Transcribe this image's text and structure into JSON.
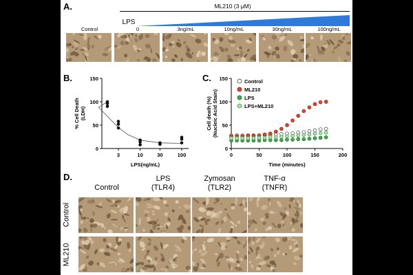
{
  "panelA": {
    "letter": "A.",
    "drug_label": "ML210 (3 μM)",
    "lps_label": "LPS",
    "columns": [
      "Control",
      "0",
      "3ng/mL",
      "10ng/mL",
      "30ng/mL",
      "100ng/mL"
    ]
  },
  "panelB": {
    "letter": "B.",
    "chart_data": {
      "type": "scatter",
      "title": "",
      "xlabel": "LPS(ng/mL)",
      "ylabel": "% Cell Death (LDH)",
      "ylabel_line1": "% Cell Death",
      "ylabel_line2": "(LDH)",
      "x_tick_labels": [
        "3",
        "10",
        "30",
        "100"
      ],
      "y_ticks": [
        0,
        50,
        100,
        150
      ],
      "ylim": [
        0,
        150
      ],
      "points": [
        {
          "x": 0,
          "y": 100
        },
        {
          "x": 0,
          "y": 96
        },
        {
          "x": 0,
          "y": 90
        },
        {
          "x": 3,
          "y": 58
        },
        {
          "x": 3,
          "y": 52
        },
        {
          "x": 3,
          "y": 44
        },
        {
          "x": 10,
          "y": 18
        },
        {
          "x": 10,
          "y": 14
        },
        {
          "x": 10,
          "y": 8
        },
        {
          "x": 30,
          "y": 12
        },
        {
          "x": 30,
          "y": 10
        },
        {
          "x": 30,
          "y": 9
        },
        {
          "x": 100,
          "y": 24
        },
        {
          "x": 100,
          "y": 20
        },
        {
          "x": 100,
          "y": 12
        }
      ],
      "fit_curve": [
        {
          "x": 0,
          "y": 100
        },
        {
          "x": 1,
          "y": 88
        },
        {
          "x": 3,
          "y": 45
        },
        {
          "x": 5,
          "y": 30
        },
        {
          "x": 10,
          "y": 18
        },
        {
          "x": 30,
          "y": 12
        },
        {
          "x": 100,
          "y": 11
        }
      ]
    }
  },
  "panelC": {
    "letter": "C.",
    "chart_data": {
      "type": "scatter",
      "title": "",
      "xlabel": "Time (minutes)",
      "ylabel": "Cell death (%) (Nucleic Acid Stain)",
      "ylabel_line1": "Cell death (%)",
      "ylabel_line2": "(Nucleic Acid Stain)",
      "xlim": [
        0,
        200
      ],
      "ylim": [
        0,
        150
      ],
      "x_ticks": [
        0,
        50,
        100,
        150,
        200
      ],
      "y_ticks": [
        0,
        50,
        100,
        150
      ],
      "legend_position": "top-left",
      "series": [
        {
          "name": "Control",
          "color": "#ffffff",
          "stroke": "#333333",
          "x": [
            0,
            10,
            20,
            30,
            40,
            50,
            60,
            70,
            80,
            90,
            100,
            110,
            120,
            130,
            140,
            150,
            160,
            170
          ],
          "y": [
            28,
            28,
            28,
            28,
            28,
            28,
            29,
            29,
            30,
            31,
            32,
            33,
            34,
            35,
            37,
            39,
            41,
            42
          ]
        },
        {
          "name": "ML210",
          "color": "#e8442a",
          "stroke": "#7a1a0a",
          "x": [
            0,
            10,
            20,
            30,
            40,
            50,
            60,
            70,
            80,
            90,
            100,
            110,
            120,
            130,
            140,
            150,
            160,
            170
          ],
          "y": [
            26,
            26,
            26,
            27,
            27,
            28,
            30,
            32,
            36,
            42,
            50,
            60,
            70,
            80,
            88,
            95,
            99,
            100
          ]
        },
        {
          "name": "LPS",
          "color": "#3cb44b",
          "stroke": "#1a5a20",
          "x": [
            0,
            10,
            20,
            30,
            40,
            50,
            60,
            70,
            80,
            90,
            100,
            110,
            120,
            130,
            140,
            150,
            160,
            170
          ],
          "y": [
            17,
            17,
            17,
            17,
            17,
            17,
            18,
            18,
            18,
            18,
            19,
            19,
            20,
            20,
            21,
            22,
            23,
            24
          ]
        },
        {
          "name": "LPS+ML210",
          "color": "#a8e6a8",
          "stroke": "#4a8a4a",
          "x": [
            0,
            10,
            20,
            30,
            40,
            50,
            60,
            70,
            80,
            90,
            100,
            110,
            120,
            130,
            140,
            150,
            160,
            170
          ],
          "y": [
            22,
            22,
            22,
            22,
            22,
            23,
            23,
            24,
            24,
            25,
            26,
            27,
            28,
            29,
            30,
            32,
            33,
            34
          ]
        }
      ]
    }
  },
  "panelD": {
    "letter": "D.",
    "columns": [
      {
        "line1": "Control",
        "line2": ""
      },
      {
        "line1": "LPS",
        "line2": "(TLR4)"
      },
      {
        "line1": "Zymosan",
        "line2": "(TLR2)"
      },
      {
        "line1": "TNF-α",
        "line2": "(TNFR)"
      }
    ],
    "rows": [
      "Control",
      "ML210"
    ]
  },
  "colors": {
    "micro_bg": "#b59a78",
    "micro_dark": "#6b5338",
    "micro_light": "#e4d3b4",
    "wedge": "#2f7ad8"
  }
}
